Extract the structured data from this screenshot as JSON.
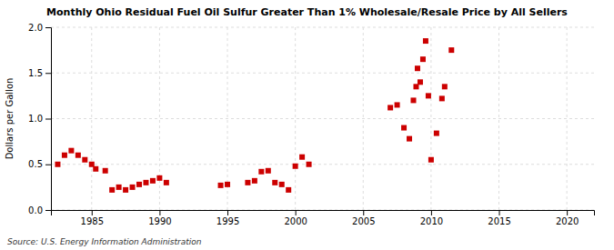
{
  "chart_data": {
    "type": "scatter",
    "title": "Monthly Ohio Residual Fuel Oil Sulfur Greater Than 1% Wholesale/Resale Price by All Sellers",
    "ylabel": "Dollars per Gallon",
    "annotations": [
      "Source: U.S. Energy Information Administration"
    ],
    "color": "#cc0000",
    "marker": "square",
    "grid": true,
    "xlim": [
      1982,
      2022
    ],
    "ylim": [
      0.0,
      2.0
    ],
    "xticks": [
      1985,
      1990,
      1995,
      2000,
      2005,
      2010,
      2015,
      2020
    ],
    "yticks": [
      {
        "value": 0,
        "label": "0.0"
      },
      0.5,
      {
        "value": 1,
        "label": "1.0"
      },
      1.5,
      {
        "value": 2,
        "label": "2.0"
      }
    ],
    "x": [
      1982.5,
      1983.0,
      1983.5,
      1984.0,
      1984.5,
      1985.0,
      1985.3,
      1986.0,
      1986.5,
      1987.0,
      1987.5,
      1988.0,
      1988.5,
      1989.0,
      1989.5,
      1990.0,
      1990.5,
      1994.5,
      1995.0,
      1996.5,
      1997.0,
      1997.5,
      1998.0,
      1998.5,
      1999.0,
      1999.5,
      2000.0,
      2000.5,
      2001.0,
      2007.0,
      2007.5,
      2008.0,
      2008.4,
      2008.7,
      2008.9,
      2009.0,
      2009.2,
      2009.4,
      2009.6,
      2009.8,
      2010.0,
      2010.4,
      2010.8,
      2011.0,
      2011.5
    ],
    "values": [
      0.5,
      0.6,
      0.65,
      0.6,
      0.55,
      0.5,
      0.45,
      0.43,
      0.22,
      0.25,
      0.22,
      0.25,
      0.28,
      0.3,
      0.32,
      0.35,
      0.3,
      0.27,
      0.28,
      0.3,
      0.32,
      0.42,
      0.43,
      0.3,
      0.28,
      0.22,
      0.48,
      0.58,
      0.5,
      1.12,
      1.15,
      0.9,
      0.78,
      1.2,
      1.35,
      1.55,
      1.4,
      1.65,
      1.85,
      1.25,
      0.55,
      0.84,
      1.22,
      1.35,
      1.75
    ]
  }
}
